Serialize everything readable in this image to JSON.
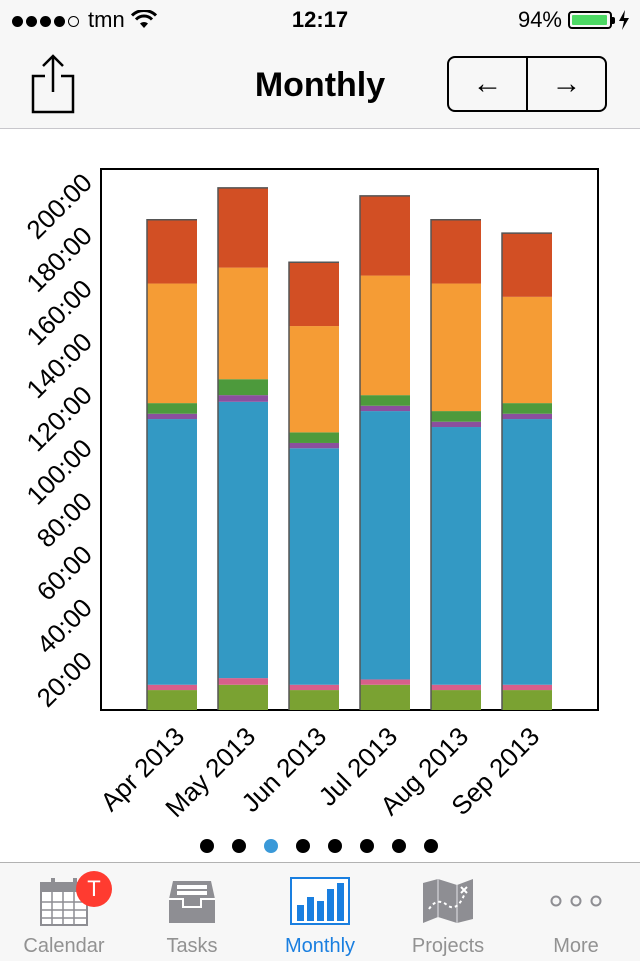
{
  "status_bar": {
    "carrier": "tmn",
    "time": "12:17",
    "battery": "94%"
  },
  "nav": {
    "title": "Monthly",
    "share_icon": "share-icon",
    "prev_icon": "arrow-left-icon",
    "next_icon": "arrow-right-icon",
    "prev_glyph": "←",
    "next_glyph": "→"
  },
  "chart_data": {
    "type": "bar",
    "stacked": true,
    "categories": [
      "Apr 2013",
      "May 2013",
      "Jun 2013",
      "Jul 2013",
      "Aug 2013",
      "Sep 2013"
    ],
    "ylim": [
      0,
      205
    ],
    "yticks": [
      "20:00",
      "40:00",
      "60:00",
      "80:00",
      "100:00",
      "120:00",
      "140:00",
      "160:00",
      "180:00",
      "200:00"
    ],
    "series": [
      {
        "color": "#7aa232",
        "values": [
          7.5,
          9.5,
          7.5,
          9.5,
          7.5,
          7.5
        ]
      },
      {
        "color": "#d85f8a",
        "values": [
          2.0,
          2.5,
          2.0,
          2.0,
          2.0,
          2.0
        ]
      },
      {
        "color": "#3399c4",
        "values": [
          100,
          104,
          89,
          101,
          97,
          100
        ]
      },
      {
        "color": "#8b4f9e",
        "values": [
          2.0,
          2.5,
          2.0,
          2.0,
          2.0,
          2.0
        ]
      },
      {
        "color": "#4d9a3c",
        "values": [
          4.0,
          6.0,
          4.0,
          4.0,
          4.0,
          4.0
        ]
      },
      {
        "color": "#f59c35",
        "values": [
          45,
          42,
          40,
          45,
          48,
          40
        ]
      },
      {
        "color": "#d24f24",
        "values": [
          24,
          30,
          24,
          30,
          24,
          24
        ]
      }
    ]
  },
  "pager": {
    "count": 8,
    "active": 2
  },
  "tabbar": {
    "tabs": [
      {
        "label": "Calendar",
        "icon": "calendar-icon",
        "badge": "T"
      },
      {
        "label": "Tasks",
        "icon": "inbox-tray-icon"
      },
      {
        "label": "Monthly",
        "icon": "bar-chart-icon",
        "active": true
      },
      {
        "label": "Projects",
        "icon": "map-icon"
      },
      {
        "label": "More",
        "icon": "more-dots-icon"
      }
    ]
  },
  "colors": {
    "accent": "#1a7fe0",
    "inactive": "#929292",
    "badge": "#ff3b30"
  }
}
